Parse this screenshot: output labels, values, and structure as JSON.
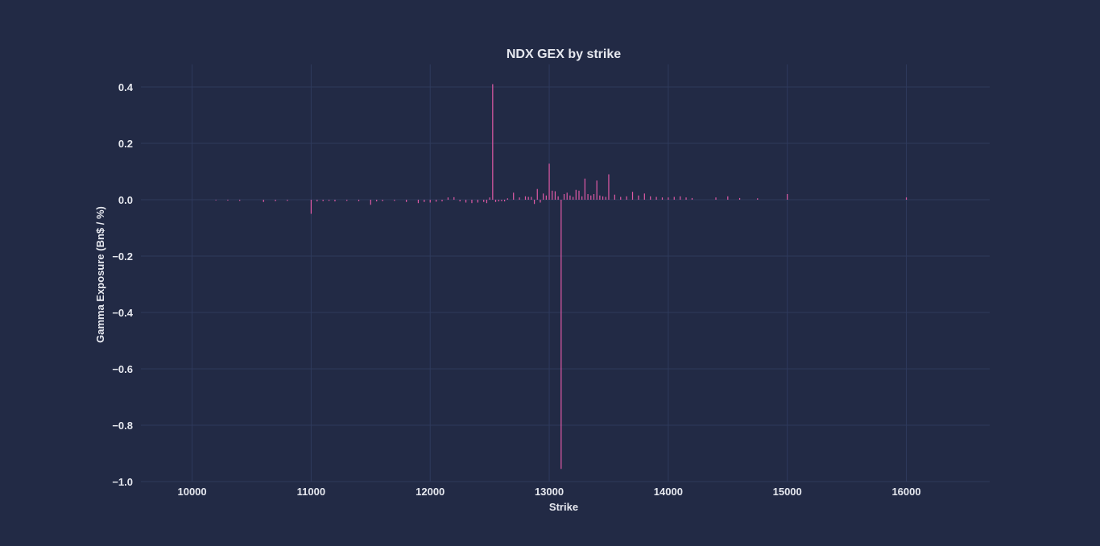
{
  "chart_data": {
    "type": "bar",
    "title": "NDX GEX by strike",
    "xlabel": "Strike",
    "ylabel": "Gamma Exposure (Bn$ / %)",
    "xlim": [
      9570,
      16700
    ],
    "ylim": [
      -1.0,
      0.48
    ],
    "xticks": [
      10000,
      11000,
      12000,
      13000,
      14000,
      15000,
      16000
    ],
    "xtick_labels": [
      "10000",
      "11000",
      "12000",
      "13000",
      "14000",
      "15000",
      "16000"
    ],
    "yticks": [
      0.4,
      0.2,
      0.0,
      -0.2,
      -0.4,
      -0.6,
      -0.8,
      -1.0
    ],
    "ytick_labels": [
      "0.4",
      "0.2",
      "0.0",
      "−0.2",
      "−0.4",
      "−0.6",
      "−0.8",
      "−1.0"
    ],
    "grid": true,
    "bar_color": "#e05aa6",
    "background_color": "#222a45",
    "grid_color": "#2e3a5c",
    "text_color": "#e6e8ef",
    "x": [
      10200,
      10300,
      10400,
      10600,
      10700,
      10800,
      11000,
      11050,
      11100,
      11150,
      11200,
      11300,
      11400,
      11500,
      11550,
      11600,
      11700,
      11800,
      11900,
      11950,
      12000,
      12050,
      12100,
      12150,
      12200,
      12250,
      12300,
      12350,
      12400,
      12450,
      12475,
      12500,
      12525,
      12550,
      12575,
      12600,
      12625,
      12650,
      12700,
      12750,
      12800,
      12825,
      12850,
      12875,
      12900,
      12925,
      12950,
      12975,
      13000,
      13025,
      13050,
      13075,
      13100,
      13125,
      13150,
      13175,
      13200,
      13225,
      13250,
      13275,
      13300,
      13325,
      13350,
      13375,
      13400,
      13425,
      13450,
      13475,
      13500,
      13550,
      13600,
      13650,
      13700,
      13750,
      13800,
      13850,
      13900,
      13950,
      14000,
      14050,
      14100,
      14150,
      14200,
      14400,
      14500,
      14600,
      14750,
      15000,
      16000
    ],
    "values": [
      -0.002,
      -0.003,
      -0.004,
      -0.008,
      -0.005,
      -0.004,
      -0.05,
      -0.006,
      -0.005,
      -0.004,
      -0.006,
      -0.004,
      -0.005,
      -0.018,
      -0.006,
      -0.005,
      -0.004,
      -0.008,
      -0.012,
      -0.008,
      -0.01,
      -0.007,
      -0.006,
      0.008,
      0.009,
      -0.006,
      -0.01,
      -0.012,
      -0.01,
      -0.008,
      -0.012,
      0.008,
      0.41,
      -0.008,
      -0.006,
      -0.005,
      -0.006,
      0.005,
      0.025,
      0.008,
      0.012,
      0.01,
      0.01,
      -0.015,
      0.038,
      -0.01,
      0.022,
      0.015,
      0.128,
      0.032,
      0.03,
      0.012,
      -0.955,
      0.02,
      0.025,
      0.015,
      0.01,
      0.035,
      0.032,
      0.012,
      0.075,
      0.02,
      0.015,
      0.02,
      0.068,
      0.015,
      0.012,
      0.01,
      0.09,
      0.018,
      0.01,
      0.012,
      0.028,
      0.015,
      0.022,
      0.012,
      0.01,
      0.008,
      0.008,
      0.01,
      0.012,
      0.008,
      0.006,
      0.008,
      0.012,
      0.006,
      0.005,
      0.02,
      0.008
    ]
  }
}
